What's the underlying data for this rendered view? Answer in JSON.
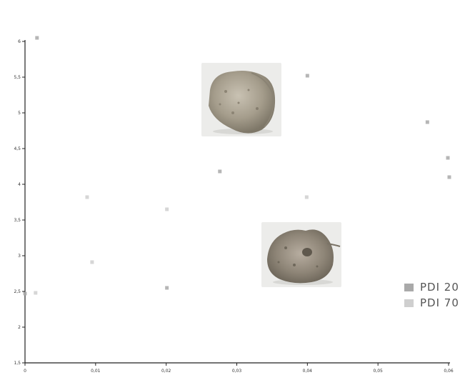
{
  "chart_data": {
    "type": "scatter",
    "title": "",
    "xlabel": "",
    "ylabel": "",
    "xlim": [
      0,
      0.06
    ],
    "ylim": [
      1.5,
      6
    ],
    "x_ticks": [
      "0",
      "0,01",
      "0,02",
      "0,03",
      "0,04",
      "0,05",
      "0,06"
    ],
    "y_ticks": [
      "1,5",
      "2",
      "2,5",
      "3",
      "3,5",
      "4",
      "4,5",
      "5",
      "5,5",
      "6"
    ],
    "legend_position": "bottom-right",
    "series": [
      {
        "name": "PDI 20",
        "color": "#a9a9a9",
        "points": [
          {
            "x": 0.0017,
            "y": 6.05
          },
          {
            "x": 0.04,
            "y": 5.52
          },
          {
            "x": 0.057,
            "y": 4.87
          },
          {
            "x": 0.0599,
            "y": 4.37
          },
          {
            "x": 0.0276,
            "y": 4.18
          },
          {
            "x": 0.0,
            "y": 2.47
          },
          {
            "x": 0.0201,
            "y": 2.55
          },
          {
            "x": 0.0601,
            "y": 4.1
          }
        ]
      },
      {
        "name": "PDI 70",
        "color": "#cfcfcf",
        "points": [
          {
            "x": 0.0201,
            "y": 3.65
          },
          {
            "x": 0.0095,
            "y": 2.91
          },
          {
            "x": 0.0399,
            "y": 3.82
          },
          {
            "x": 0.0088,
            "y": 3.82
          },
          {
            "x": 0.0015,
            "y": 2.48
          }
        ]
      }
    ]
  },
  "photos": [
    {
      "name": "PDI 20",
      "icon": "pellet-photo-icon"
    },
    {
      "name": "PDI 70",
      "icon": "pellet-photo-icon"
    }
  ]
}
